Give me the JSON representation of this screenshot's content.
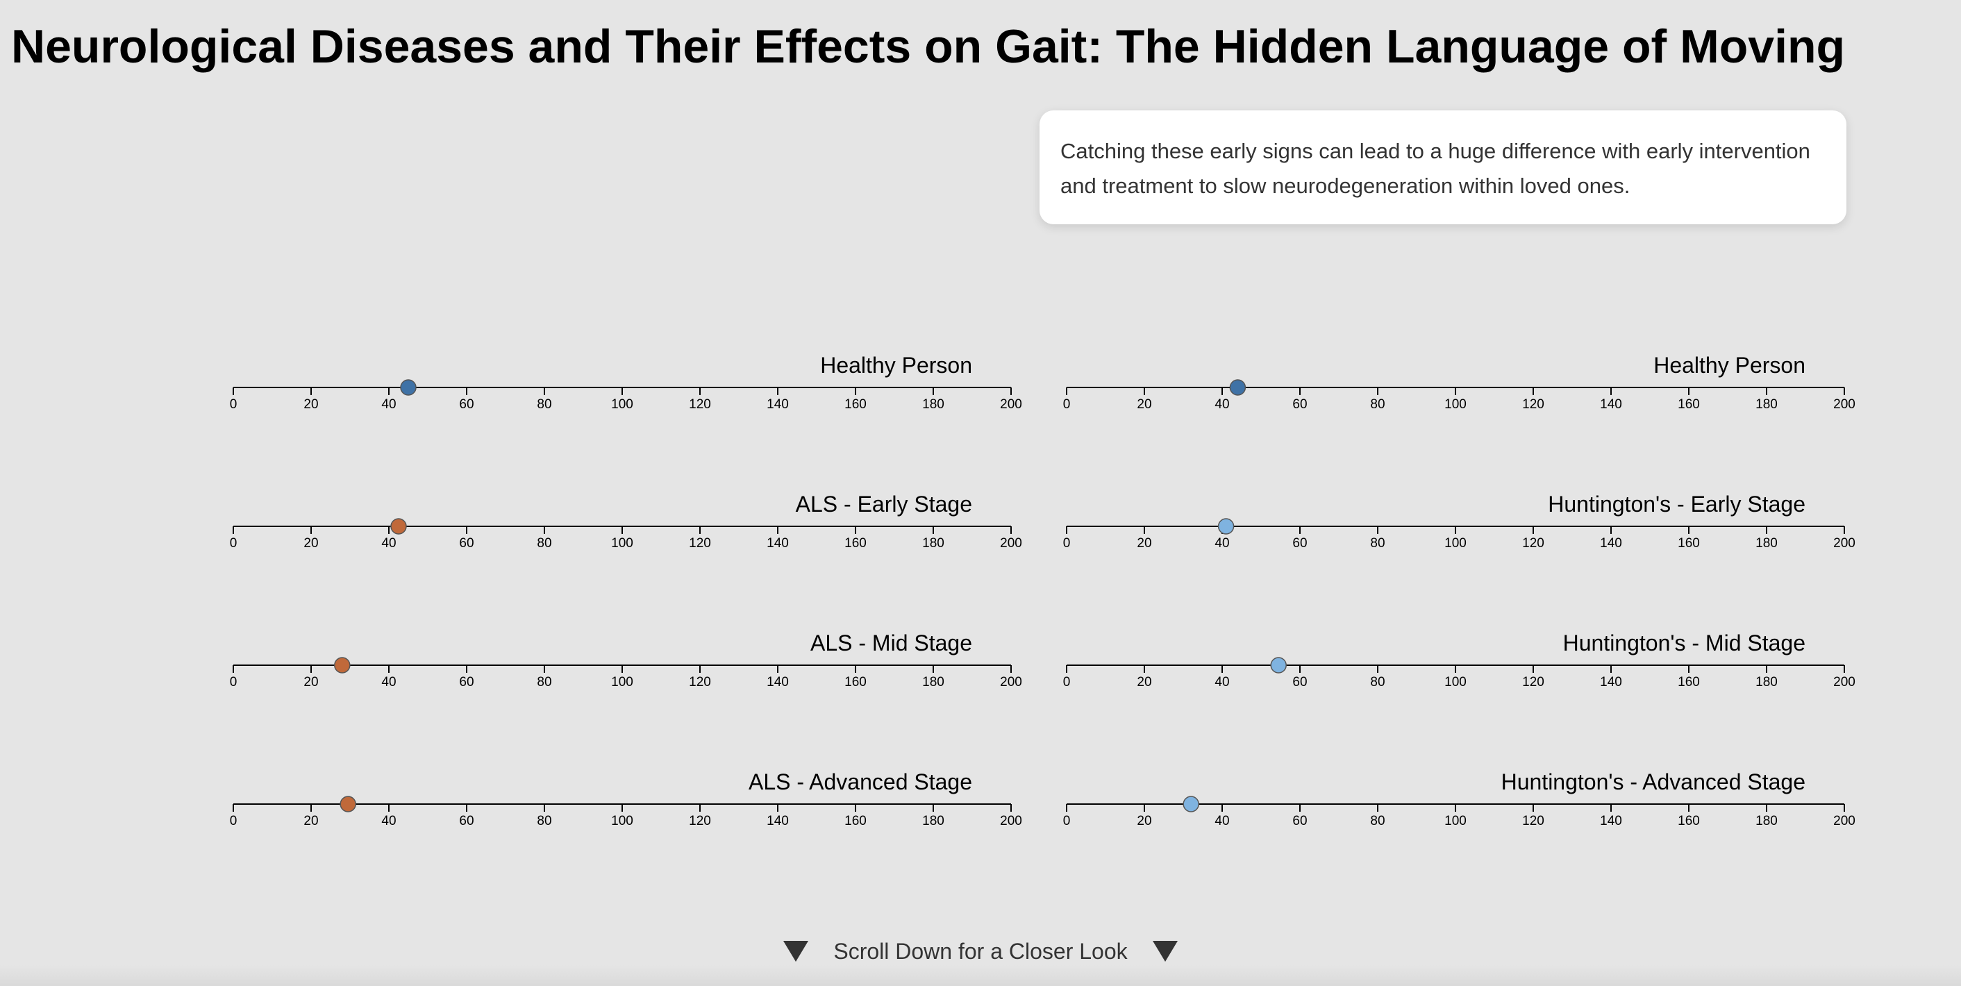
{
  "page": {
    "title": "Neurological Diseases and Their Effects on Gait: The Hidden Language of Moving",
    "info_text": "Catching these early signs can lead to a huge difference with early intervention and treatment to slow neurodegeneration within loved ones.",
    "scroll_cue": "Scroll Down for a Closer Look"
  },
  "chart_data": [
    {
      "type": "scatter",
      "title": "Healthy Person",
      "xlim": [
        0,
        200
      ],
      "ticks": [
        0,
        20,
        40,
        60,
        80,
        100,
        120,
        140,
        160,
        180,
        200
      ],
      "x": [
        45
      ],
      "color": "#3f72a6"
    },
    {
      "type": "scatter",
      "title": "ALS - Early Stage",
      "xlim": [
        0,
        200
      ],
      "ticks": [
        0,
        20,
        40,
        60,
        80,
        100,
        120,
        140,
        160,
        180,
        200
      ],
      "x": [
        42.5
      ],
      "color": "#c0693a"
    },
    {
      "type": "scatter",
      "title": "ALS - Mid Stage",
      "xlim": [
        0,
        200
      ],
      "ticks": [
        0,
        20,
        40,
        60,
        80,
        100,
        120,
        140,
        160,
        180,
        200
      ],
      "x": [
        28
      ],
      "color": "#c0693a"
    },
    {
      "type": "scatter",
      "title": "ALS - Advanced Stage",
      "xlim": [
        0,
        200
      ],
      "ticks": [
        0,
        20,
        40,
        60,
        80,
        100,
        120,
        140,
        160,
        180,
        200
      ],
      "x": [
        29.5
      ],
      "color": "#c0693a"
    },
    {
      "type": "scatter",
      "title": "Healthy Person",
      "xlim": [
        0,
        200
      ],
      "ticks": [
        0,
        20,
        40,
        60,
        80,
        100,
        120,
        140,
        160,
        180,
        200
      ],
      "x": [
        44
      ],
      "color": "#3f72a6"
    },
    {
      "type": "scatter",
      "title": "Huntington's - Early Stage",
      "xlim": [
        0,
        200
      ],
      "ticks": [
        0,
        20,
        40,
        60,
        80,
        100,
        120,
        140,
        160,
        180,
        200
      ],
      "x": [
        41
      ],
      "color": "#7fb3e0"
    },
    {
      "type": "scatter",
      "title": "Huntington's - Mid Stage",
      "xlim": [
        0,
        200
      ],
      "ticks": [
        0,
        20,
        40,
        60,
        80,
        100,
        120,
        140,
        160,
        180,
        200
      ],
      "x": [
        54.5
      ],
      "color": "#7fb3e0"
    },
    {
      "type": "scatter",
      "title": "Huntington's - Advanced Stage",
      "xlim": [
        0,
        200
      ],
      "ticks": [
        0,
        20,
        40,
        60,
        80,
        100,
        120,
        140,
        160,
        180,
        200
      ],
      "x": [
        32
      ],
      "color": "#7fb3e0"
    }
  ]
}
